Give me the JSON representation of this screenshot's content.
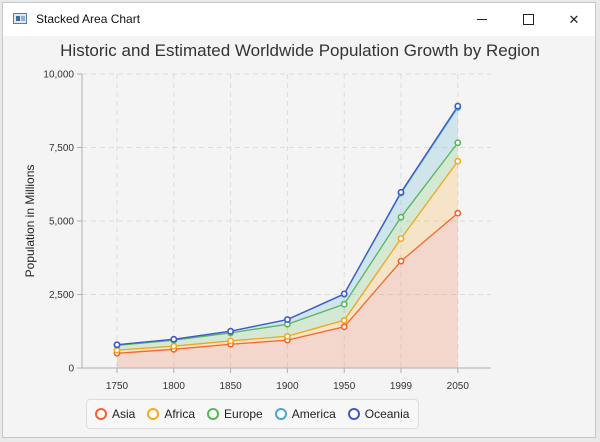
{
  "window": {
    "title": "Stacked Area Chart",
    "minimize_icon": "minimize-icon",
    "maximize_icon": "maximize-icon",
    "close_icon": "close-icon",
    "close_glyph": "✕"
  },
  "chart_data": {
    "type": "area",
    "stacked": true,
    "title": "Historic and Estimated Worldwide Population Growth by Region",
    "xlabel": "",
    "ylabel": "Population in Millions",
    "categories": [
      "1750",
      "1800",
      "1850",
      "1900",
      "1950",
      "1999",
      "2050"
    ],
    "ylim": [
      0,
      10000
    ],
    "yticks": [
      0,
      2500,
      5000,
      7500,
      10000
    ],
    "ytick_labels": [
      "0",
      "2,500",
      "5,000",
      "7,500",
      "10,000"
    ],
    "grid": true,
    "legend_position": "bottom-left",
    "series": [
      {
        "name": "Asia",
        "color": "#f3622d",
        "values": [
          502,
          635,
          809,
          947,
          1402,
          3634,
          5268
        ]
      },
      {
        "name": "Africa",
        "color": "#fba71b",
        "values": [
          106,
          107,
          111,
          133,
          221,
          767,
          1766
        ]
      },
      {
        "name": "Europe",
        "color": "#57b757",
        "values": [
          163,
          203,
          276,
          408,
          547,
          729,
          628
        ]
      },
      {
        "name": "America",
        "color": "#41a9c9",
        "values": [
          18,
          31,
          54,
          156,
          339,
          818,
          1201
        ]
      },
      {
        "name": "Oceania",
        "color": "#4258c9",
        "values": [
          2,
          2,
          2,
          6,
          13,
          30,
          46
        ]
      }
    ]
  }
}
